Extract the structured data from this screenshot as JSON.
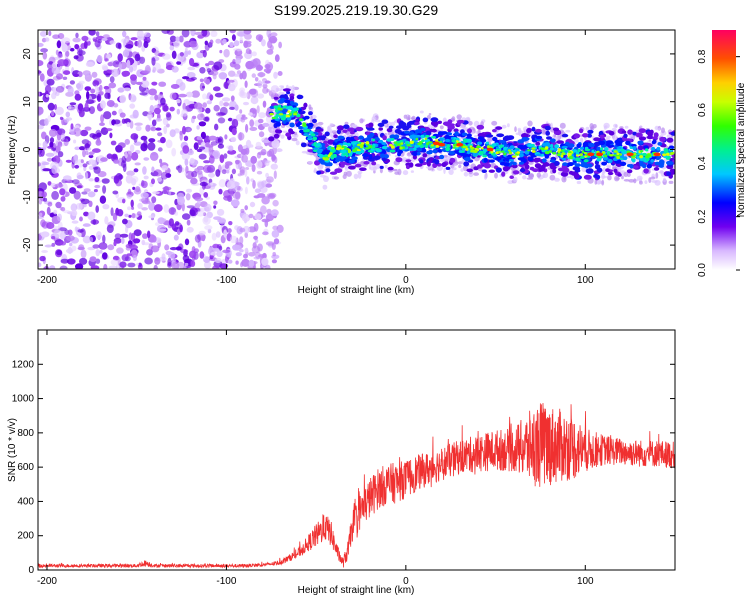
{
  "title": "S199.2025.219.19.30.G29",
  "chart_data": [
    {
      "type": "heatmap",
      "title": "",
      "xlabel": "Height of straight line (km)",
      "ylabel": "Frequency (Hz)",
      "xlim": [
        -205,
        150
      ],
      "ylim": [
        -25,
        25
      ],
      "xticks": [
        -200,
        -100,
        0,
        100
      ],
      "yticks": [
        -20,
        -10,
        0,
        10,
        20
      ],
      "colorbar": {
        "label": "Normalized spectral amplitude",
        "range": [
          0,
          0.9
        ],
        "ticks": [
          "0.0",
          "0.2",
          "0.4",
          "0.6",
          "0.8"
        ]
      },
      "ridge": {
        "x": [
          -75,
          -70,
          -60,
          -55,
          -50,
          -45,
          -40,
          -30,
          -20,
          -10,
          0,
          10,
          20,
          30,
          40,
          50,
          60,
          70,
          80,
          90,
          100,
          110,
          120,
          130,
          140,
          150
        ],
        "frequency": [
          7,
          8,
          7,
          4,
          1,
          -2,
          0,
          0,
          1,
          1,
          1,
          2,
          1,
          1,
          0,
          0,
          -1,
          0,
          0,
          -1,
          -1,
          -1,
          -1,
          -1,
          -1,
          -1
        ]
      },
      "noise_region_x": [
        -205,
        -70
      ],
      "grid": false
    },
    {
      "type": "line",
      "title": "",
      "xlabel": "Height of straight line (km)",
      "ylabel": "SNR (10 * v/v)",
      "xlim": [
        -205,
        150
      ],
      "ylim": [
        0,
        1400
      ],
      "xticks": [
        -200,
        -100,
        0,
        100
      ],
      "yticks": [
        0,
        200,
        400,
        600,
        800,
        1000,
        1200
      ],
      "color": "#f03030",
      "series": [
        {
          "x": [
            -205,
            -190,
            -170,
            -150,
            -145,
            -140,
            -120,
            -100,
            -90,
            -80,
            -75,
            -70,
            -65,
            -60,
            -55,
            -50,
            -45,
            -42,
            -38,
            -35,
            -32,
            -30,
            -25,
            -20,
            -15,
            -10,
            -5,
            0,
            5,
            10,
            20,
            30,
            40,
            50,
            60,
            70,
            75,
            80,
            90,
            95,
            100,
            110,
            120,
            130,
            140,
            150
          ],
          "y": [
            25,
            25,
            25,
            25,
            40,
            25,
            25,
            25,
            25,
            30,
            35,
            45,
            70,
            100,
            150,
            200,
            250,
            220,
            100,
            40,
            120,
            250,
            350,
            420,
            480,
            500,
            510,
            530,
            560,
            580,
            620,
            660,
            680,
            700,
            700,
            720,
            730,
            730,
            720,
            710,
            700,
            700,
            690,
            680,
            680,
            670
          ],
          "spread": [
            10,
            10,
            10,
            10,
            20,
            10,
            10,
            10,
            10,
            10,
            10,
            15,
            20,
            30,
            45,
            70,
            80,
            80,
            40,
            30,
            60,
            90,
            110,
            120,
            120,
            120,
            120,
            110,
            110,
            100,
            100,
            100,
            110,
            120,
            130,
            220,
            260,
            240,
            200,
            180,
            130,
            90,
            80,
            80,
            80,
            80
          ]
        }
      ],
      "grid": false
    }
  ]
}
